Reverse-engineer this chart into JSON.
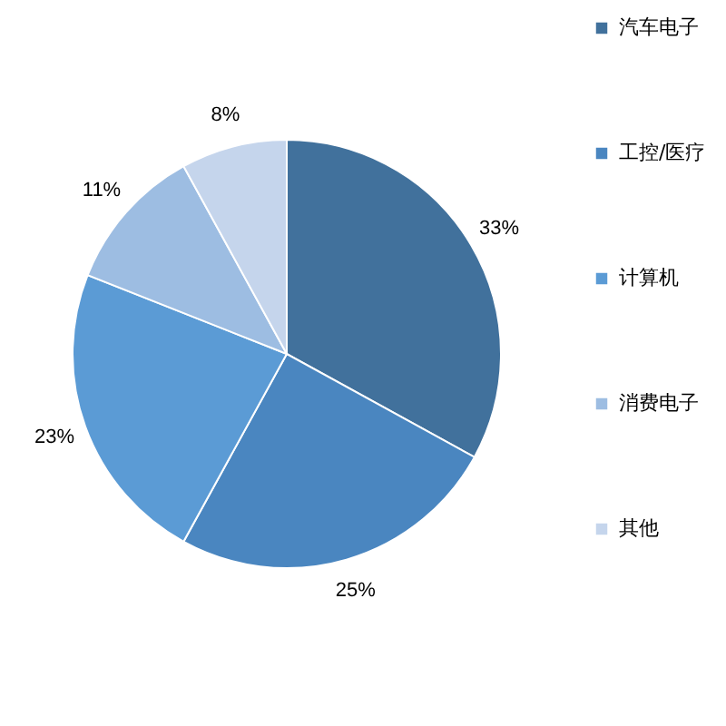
{
  "chart_data": {
    "type": "pie",
    "categories": [
      "汽车电子",
      "工控/医疗",
      "计算机",
      "消费电子",
      "其他"
    ],
    "values": [
      33,
      25,
      23,
      11,
      8
    ],
    "colors": [
      "#41719c",
      "#4a86c0",
      "#5b9bd5",
      "#9dbde2",
      "#c5d5ec"
    ],
    "value_labels": [
      "33%",
      "25%",
      "23%",
      "11%",
      "8%"
    ],
    "legend": "right"
  }
}
